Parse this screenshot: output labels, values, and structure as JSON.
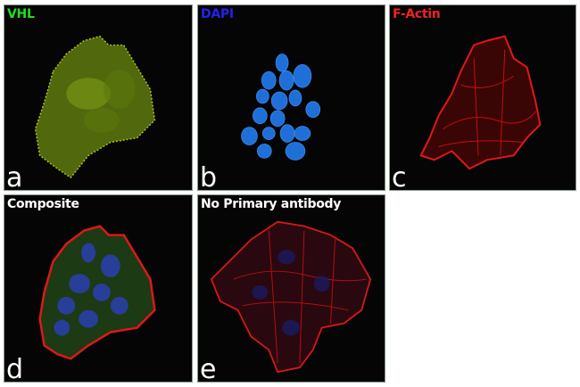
{
  "panels": [
    {
      "title": "VHL",
      "letter": "a",
      "title_color": "#22dd22"
    },
    {
      "title": "DAPI",
      "letter": "b",
      "title_color": "#2222ee"
    },
    {
      "title": "F-Actin",
      "letter": "c",
      "title_color": "#ee2222"
    },
    {
      "title": "Composite",
      "letter": "d",
      "title_color": "#ffffff"
    },
    {
      "title": "No Primary antibody",
      "letter": "e",
      "title_color": "#ffffff"
    }
  ]
}
